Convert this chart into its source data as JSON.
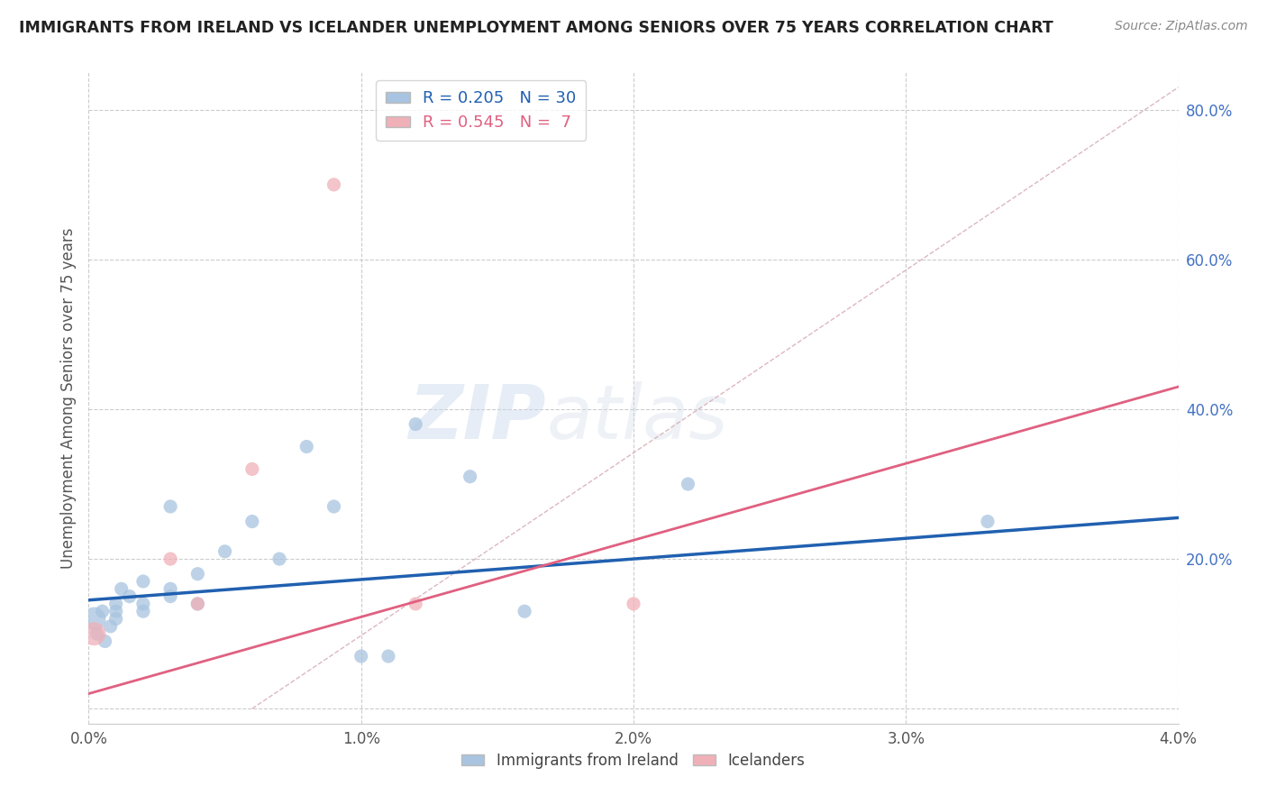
{
  "title": "IMMIGRANTS FROM IRELAND VS ICELANDER UNEMPLOYMENT AMONG SENIORS OVER 75 YEARS CORRELATION CHART",
  "source": "Source: ZipAtlas.com",
  "ylabel": "Unemployment Among Seniors over 75 years",
  "xlim": [
    0.0,
    0.04
  ],
  "ylim": [
    -0.02,
    0.85
  ],
  "x_ticks": [
    0.0,
    0.01,
    0.02,
    0.03,
    0.04
  ],
  "x_tick_labels": [
    "0.0%",
    "1.0%",
    "2.0%",
    "3.0%",
    "4.0%"
  ],
  "y_ticks": [
    0.0,
    0.2,
    0.4,
    0.6,
    0.8
  ],
  "y_tick_labels": [
    "",
    "20.0%",
    "40.0%",
    "60.0%",
    "80.0%"
  ],
  "blue_r": 0.205,
  "blue_n": 30,
  "pink_r": 0.545,
  "pink_n": 7,
  "blue_color": "#a8c4e0",
  "pink_color": "#f0b0b8",
  "blue_line_color": "#2060b0",
  "pink_line_color": "#e06080",
  "dashed_line_color": "#d8b0b8",
  "watermark_zip": "ZIP",
  "watermark_atlas": "atlas",
  "legend_label_blue": "Immigrants from Ireland",
  "legend_label_pink": "Icelanders",
  "blue_line_x0": 0.0,
  "blue_line_x1": 0.04,
  "blue_line_y0": 0.145,
  "blue_line_y1": 0.255,
  "pink_line_x0": 0.0,
  "pink_line_x1": 0.04,
  "pink_line_y0": 0.02,
  "pink_line_y1": 0.43,
  "diag_line_x0": 0.006,
  "diag_line_x1": 0.04,
  "diag_line_y0": 0.0,
  "diag_line_y1": 0.83,
  "blue_points_x": [
    0.0002,
    0.0003,
    0.0005,
    0.0006,
    0.0008,
    0.001,
    0.001,
    0.001,
    0.0012,
    0.0015,
    0.002,
    0.002,
    0.002,
    0.003,
    0.003,
    0.003,
    0.004,
    0.004,
    0.005,
    0.006,
    0.007,
    0.008,
    0.009,
    0.01,
    0.011,
    0.012,
    0.014,
    0.016,
    0.022,
    0.033
  ],
  "blue_points_y": [
    0.12,
    0.1,
    0.13,
    0.09,
    0.11,
    0.13,
    0.12,
    0.14,
    0.16,
    0.15,
    0.13,
    0.14,
    0.17,
    0.16,
    0.15,
    0.27,
    0.14,
    0.18,
    0.21,
    0.25,
    0.2,
    0.35,
    0.27,
    0.07,
    0.07,
    0.38,
    0.31,
    0.13,
    0.3,
    0.25
  ],
  "blue_sizes": [
    350,
    120,
    120,
    120,
    120,
    120,
    120,
    120,
    120,
    120,
    120,
    120,
    120,
    120,
    120,
    120,
    120,
    120,
    120,
    120,
    120,
    120,
    120,
    120,
    120,
    120,
    120,
    120,
    120,
    120
  ],
  "pink_points_x": [
    0.0002,
    0.003,
    0.004,
    0.006,
    0.009,
    0.012,
    0.02
  ],
  "pink_points_y": [
    0.1,
    0.2,
    0.14,
    0.32,
    0.7,
    0.14,
    0.14
  ],
  "pink_sizes": [
    350,
    120,
    120,
    120,
    120,
    120,
    120
  ]
}
